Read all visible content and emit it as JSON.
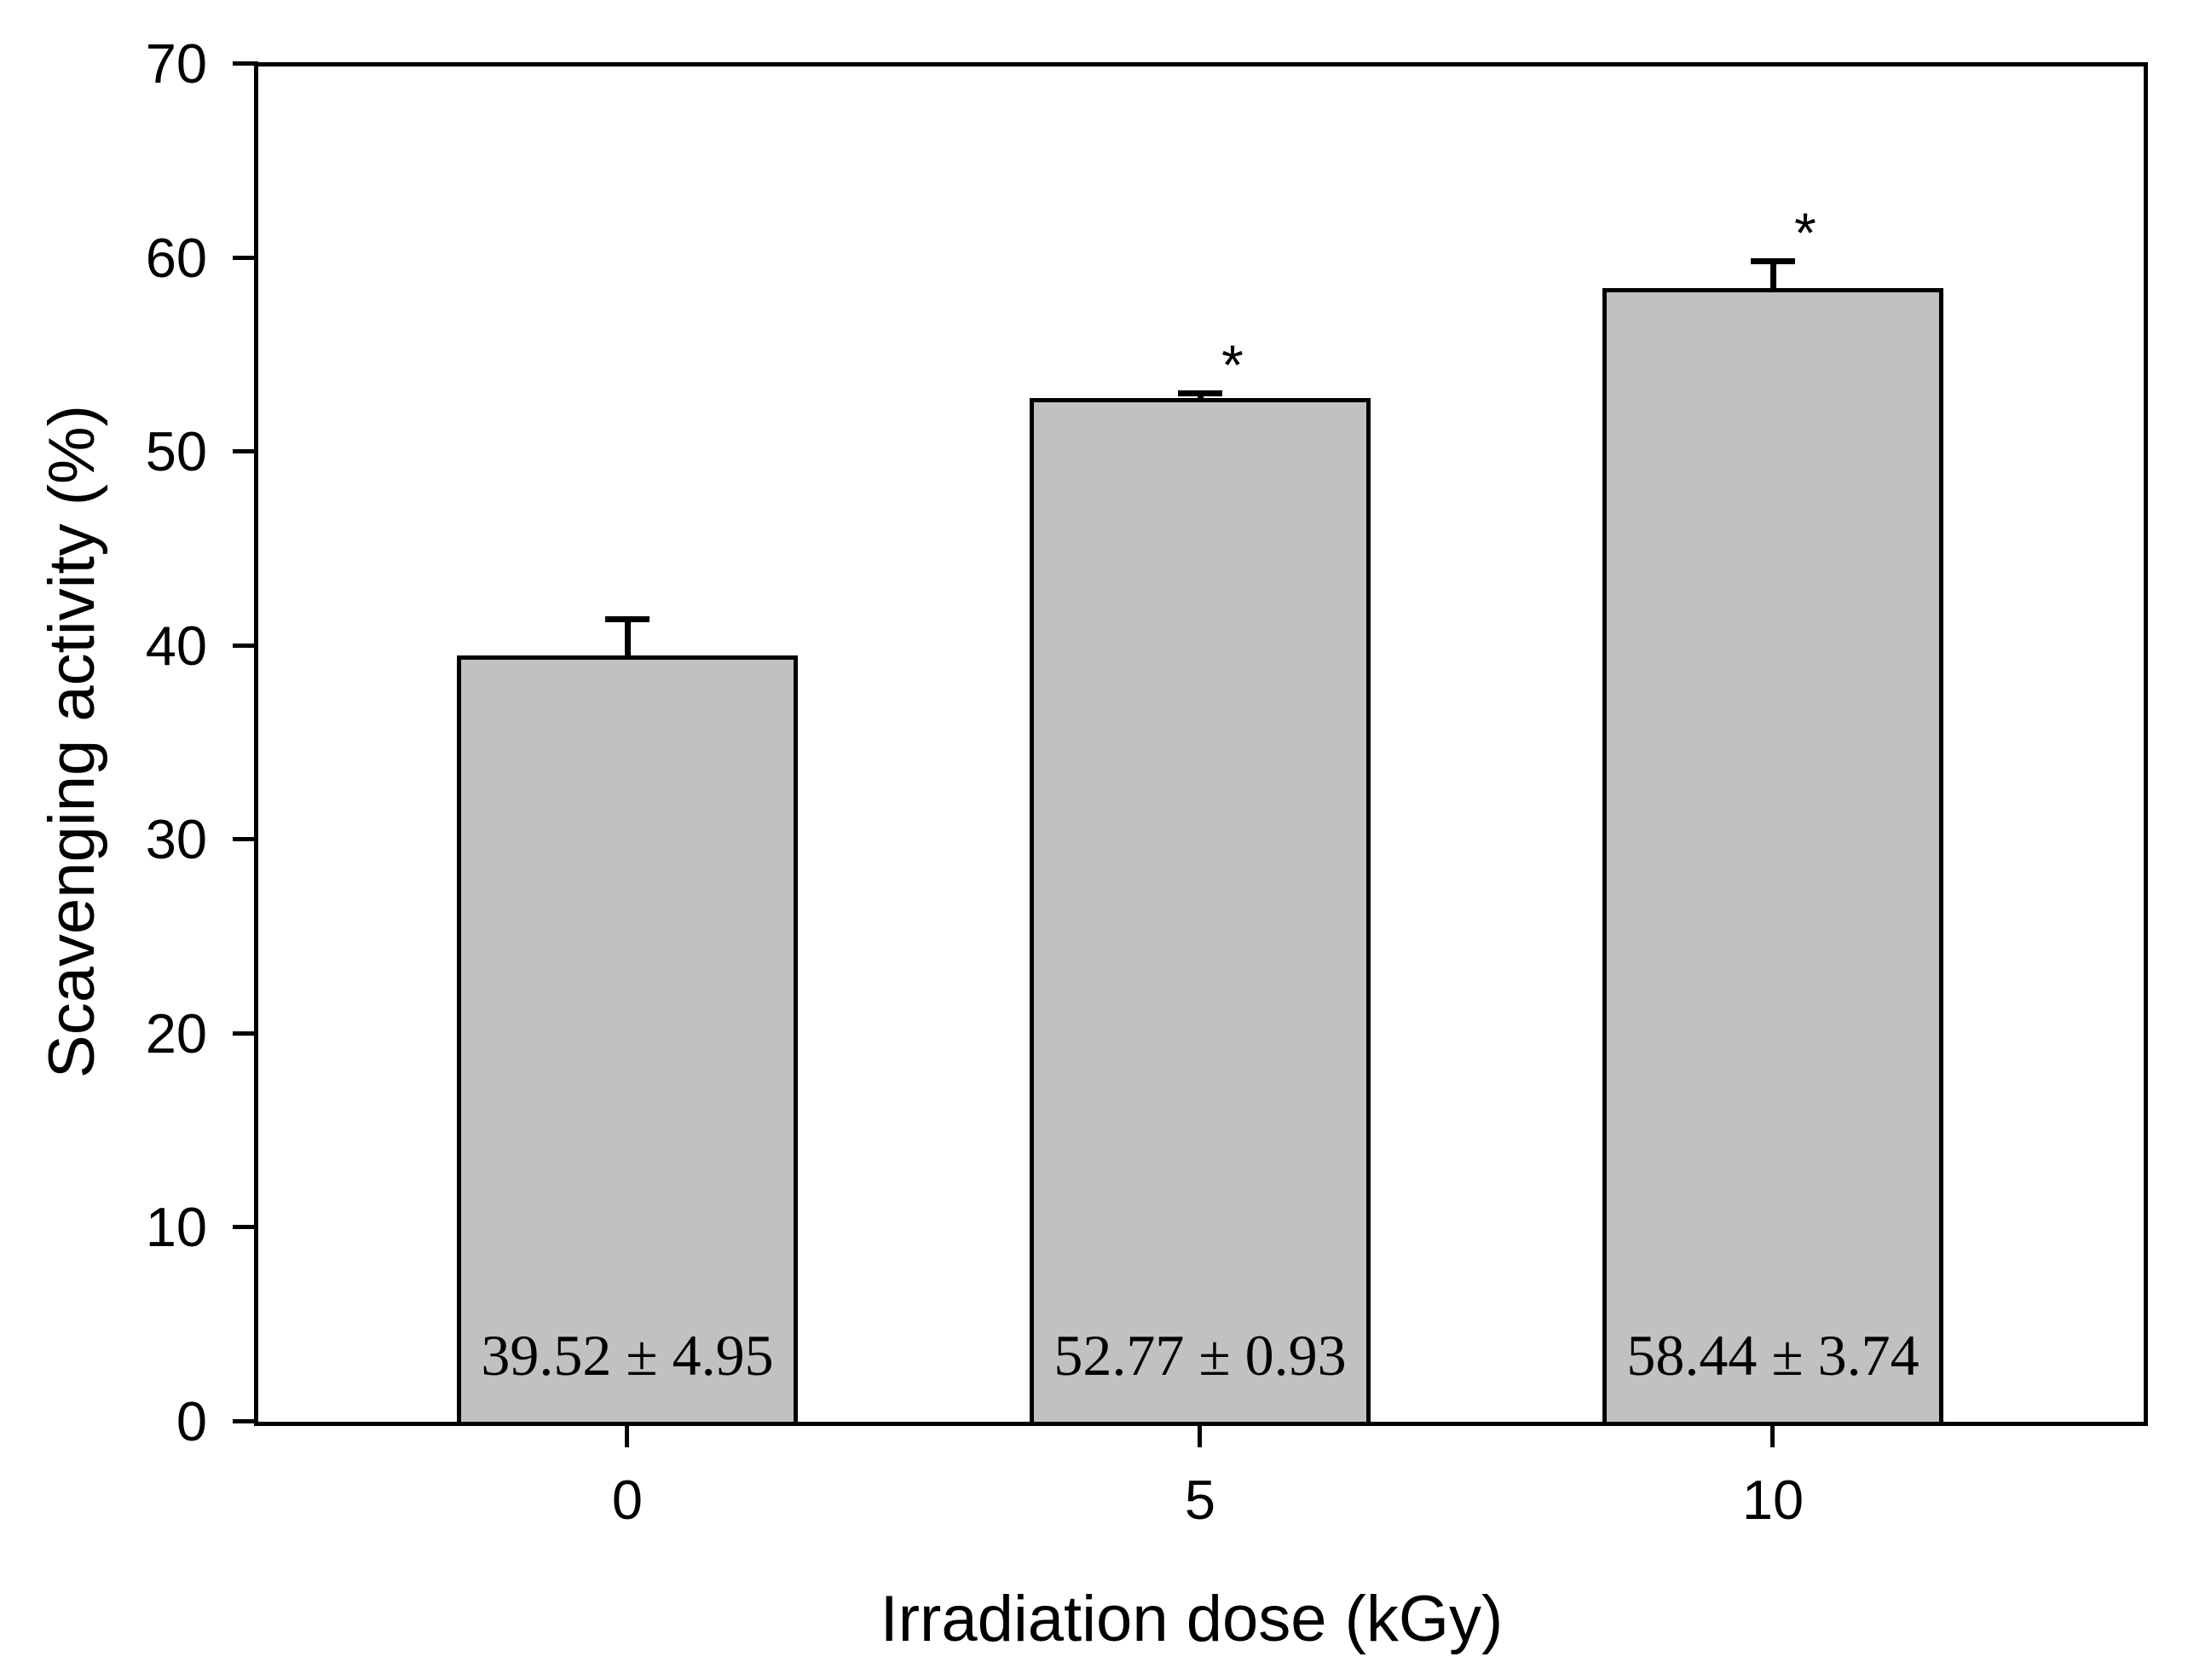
{
  "figure": {
    "background": "#ffffff",
    "bar_fill": "#c1c1c1",
    "line_color": "#000000"
  },
  "chart_data": {
    "type": "bar",
    "title": "",
    "xlabel": "Irradiation dose (kGy)",
    "ylabel": "Scavenging activity (%)",
    "categories": [
      "0",
      "5",
      "10"
    ],
    "values": [
      39.52,
      52.77,
      58.44
    ],
    "sd": [
      4.95,
      0.93,
      3.74
    ],
    "bar_labels": [
      "39.52 ± 4.95",
      "52.77 ± 0.93",
      "58.44 ± 3.74"
    ],
    "significance": [
      "",
      "*",
      "*"
    ],
    "error_bar_drawn_up": [
      2.0,
      0.38,
      1.53
    ],
    "ylim": [
      0,
      70
    ],
    "yticks": [
      0,
      10,
      20,
      30,
      40,
      50,
      60,
      70
    ],
    "grid": false,
    "legend": "none",
    "bar_orientation": "vertical"
  }
}
